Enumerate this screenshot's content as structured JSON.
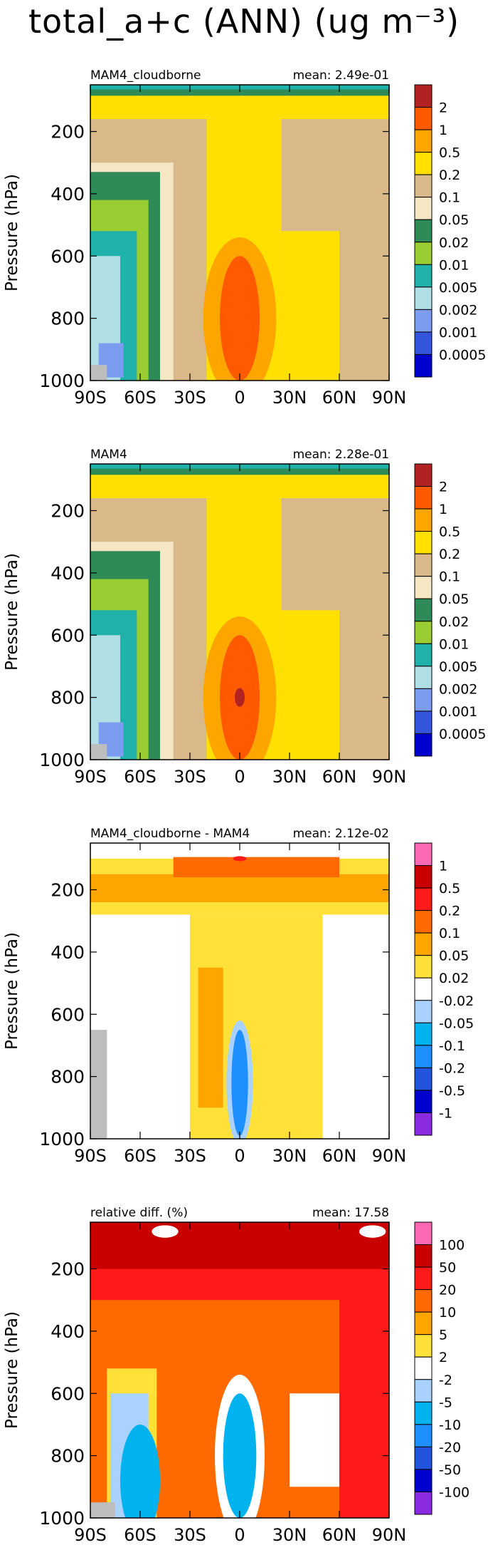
{
  "title": "total_a+c (ANN) (ug m⁻³)",
  "chart_data": [
    {
      "type": "heatmap",
      "left_label": "MAM4_cloudborne",
      "right_label": "mean: 2.49e-01",
      "ylabel": "Pressure (hPa)",
      "xlabel": "",
      "x_ticks": [
        "90S",
        "60S",
        "30S",
        "0",
        "30N",
        "60N",
        "90N"
      ],
      "x_range": [
        -90,
        90
      ],
      "y_ticks": [
        200,
        400,
        600,
        800,
        1000
      ],
      "y_range": [
        1000,
        50
      ],
      "levels": [
        "2",
        "1",
        "0.5",
        "0.2",
        "0.1",
        "0.05",
        "0.02",
        "0.01",
        "0.005",
        "0.002",
        "0.001",
        "0.0005"
      ],
      "colors": [
        "#b22222",
        "#ff5a00",
        "#ffa500",
        "#ffe000",
        "#d9b88a",
        "#f5e6c4",
        "#2e8b57",
        "#9acd32",
        "#20b2aa",
        "#b0e0e6",
        "#7b9cf0",
        "#3355dd",
        "#0000cd"
      ]
    },
    {
      "type": "heatmap",
      "left_label": "MAM4",
      "right_label": "mean: 2.28e-01",
      "ylabel": "Pressure (hPa)",
      "xlabel": "",
      "x_ticks": [
        "90S",
        "60S",
        "30S",
        "0",
        "30N",
        "60N",
        "90N"
      ],
      "x_range": [
        -90,
        90
      ],
      "y_ticks": [
        200,
        400,
        600,
        800,
        1000
      ],
      "y_range": [
        1000,
        50
      ],
      "levels": [
        "2",
        "1",
        "0.5",
        "0.2",
        "0.1",
        "0.05",
        "0.02",
        "0.01",
        "0.005",
        "0.002",
        "0.001",
        "0.0005"
      ],
      "colors": [
        "#b22222",
        "#ff5a00",
        "#ffa500",
        "#ffe000",
        "#d9b88a",
        "#f5e6c4",
        "#2e8b57",
        "#9acd32",
        "#20b2aa",
        "#b0e0e6",
        "#7b9cf0",
        "#3355dd",
        "#0000cd"
      ]
    },
    {
      "type": "heatmap",
      "left_label": "MAM4_cloudborne - MAM4",
      "right_label": "mean: 2.12e-02",
      "ylabel": "Pressure (hPa)",
      "xlabel": "",
      "x_ticks": [
        "90S",
        "60S",
        "30S",
        "0",
        "30N",
        "60N",
        "90N"
      ],
      "x_range": [
        -90,
        90
      ],
      "y_ticks": [
        200,
        400,
        600,
        800,
        1000
      ],
      "y_range": [
        1000,
        50
      ],
      "levels": [
        "1",
        "0.5",
        "0.2",
        "0.1",
        "0.05",
        "0.02",
        "-0.02",
        "-0.05",
        "-0.1",
        "-0.2",
        "-0.5",
        "-1"
      ],
      "colors": [
        "#ff69b4",
        "#c80000",
        "#ff1a1a",
        "#ff6a00",
        "#ffa500",
        "#ffe13a",
        "#ffffff",
        "#a9d2ff",
        "#00b2ee",
        "#1e8fff",
        "#2255dd",
        "#0000cd",
        "#8a2be2"
      ]
    },
    {
      "type": "heatmap",
      "left_label": "relative diff. (%)",
      "right_label": "mean: 17.58",
      "ylabel": "Pressure (hPa)",
      "xlabel": "",
      "x_ticks": [
        "90S",
        "60S",
        "30S",
        "0",
        "30N",
        "60N",
        "90N"
      ],
      "x_range": [
        -90,
        90
      ],
      "y_ticks": [
        200,
        400,
        600,
        800,
        1000
      ],
      "y_range": [
        1000,
        50
      ],
      "levels": [
        "100",
        "50",
        "20",
        "10",
        "5",
        "2",
        "-2",
        "-5",
        "-10",
        "-20",
        "-50",
        "-100"
      ],
      "colors": [
        "#ff69b4",
        "#c80000",
        "#ff1a1a",
        "#ff6a00",
        "#ffa500",
        "#ffe13a",
        "#ffffff",
        "#a9d2ff",
        "#00b2ee",
        "#1e8fff",
        "#2255dd",
        "#0000cd",
        "#8a2be2"
      ]
    }
  ]
}
